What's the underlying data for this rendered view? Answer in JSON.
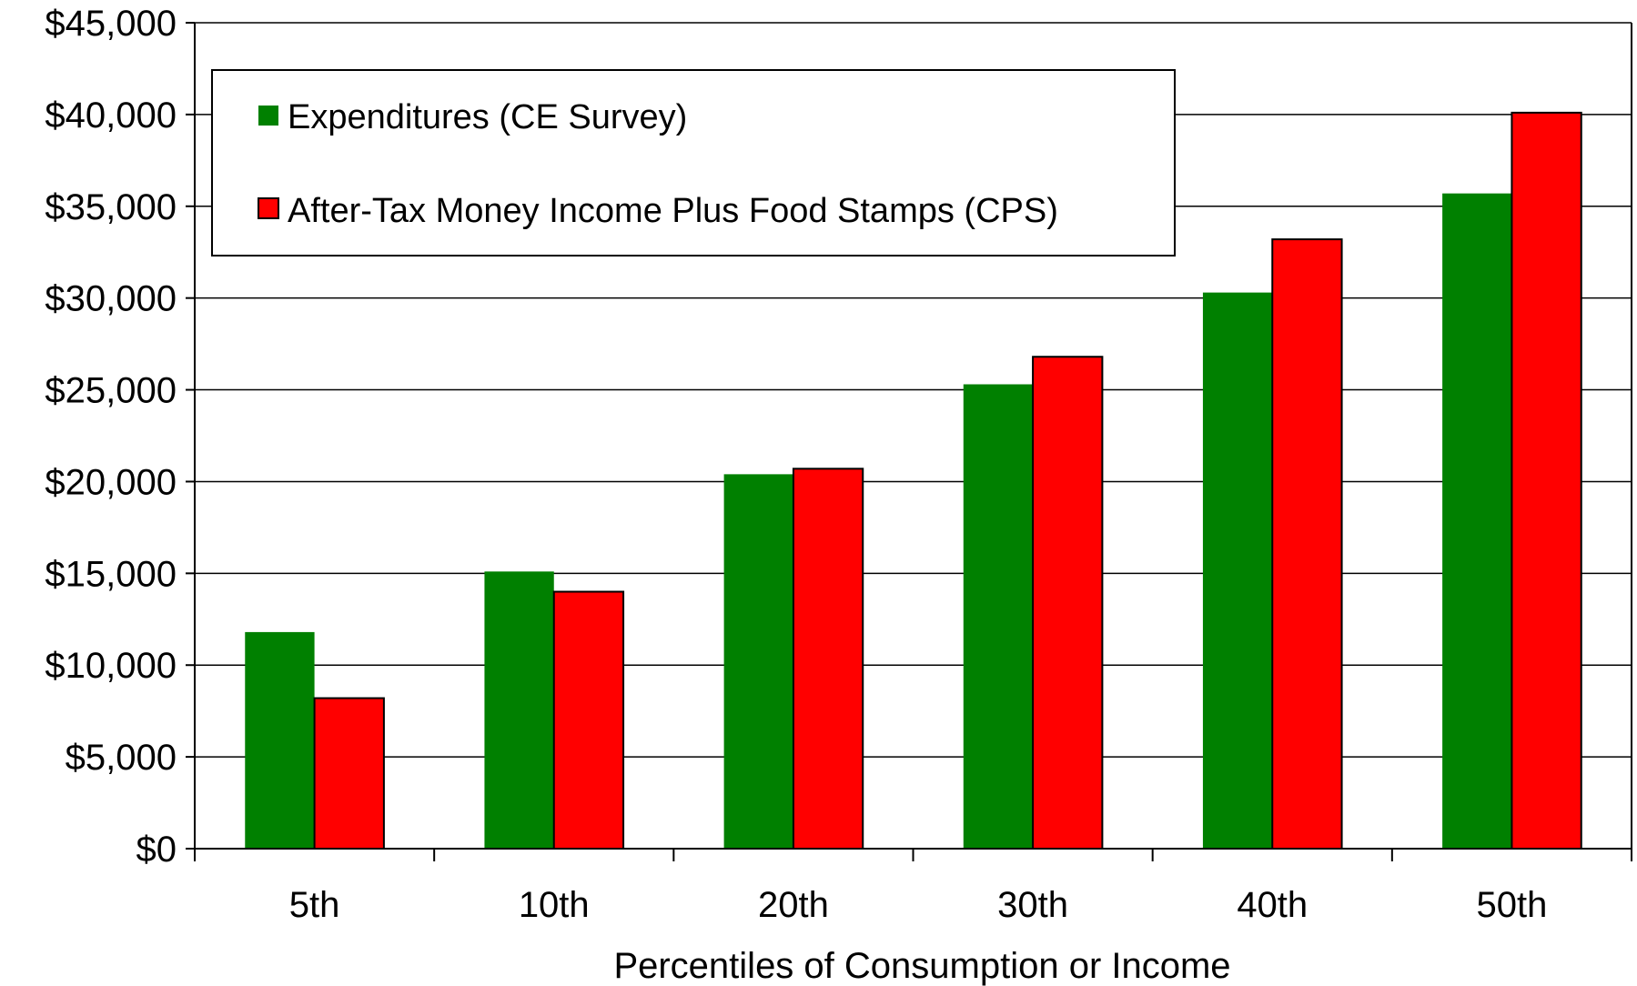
{
  "chart_data": {
    "type": "bar",
    "categories": [
      "5th",
      "10th",
      "20th",
      "30th",
      "40th",
      "50th"
    ],
    "series": [
      {
        "name": "Expenditures (CE Survey)",
        "color": "#008000",
        "values": [
          11800,
          15100,
          20400,
          25300,
          30300,
          35700
        ]
      },
      {
        "name": "After-Tax Money Income Plus Food Stamps (CPS)",
        "color": "#ff0000",
        "values": [
          8200,
          14000,
          20700,
          26800,
          33200,
          40100
        ]
      }
    ],
    "xlabel": "Percentiles of Consumption or Income",
    "ylabel": "",
    "ylim": [
      0,
      45000
    ],
    "yticks": [
      0,
      5000,
      10000,
      15000,
      20000,
      25000,
      30000,
      35000,
      40000,
      45000
    ],
    "ytick_labels": [
      "$0",
      "$5,000",
      "$10,000",
      "$15,000",
      "$20,000",
      "$25,000",
      "$30,000",
      "$35,000",
      "$40,000",
      "$45,000"
    ],
    "grid": true,
    "legend_position": "top-left"
  }
}
